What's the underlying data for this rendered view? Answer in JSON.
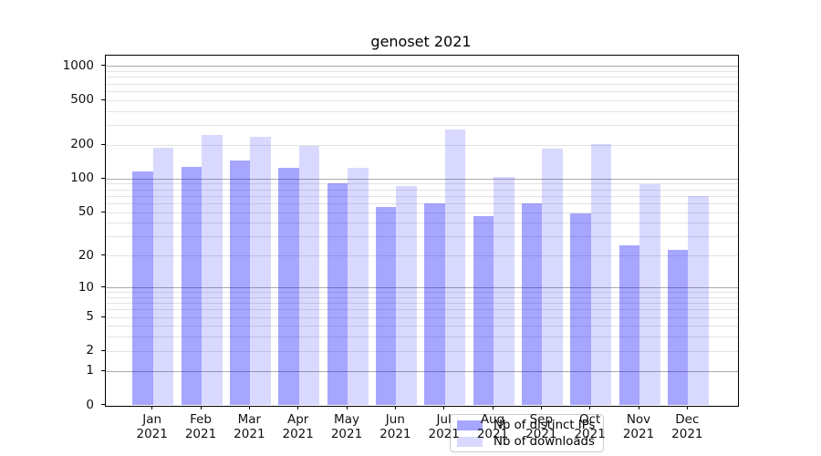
{
  "title": "genoset 2021",
  "legend": {
    "entries": [
      {
        "label": "Nb of distinct IPs",
        "color": "rgba(0,0,255,0.35)"
      },
      {
        "label": "Nb of downloads",
        "color": "rgba(0,0,255,0.15)"
      }
    ]
  },
  "chart_data": {
    "type": "bar",
    "title": "genoset 2021",
    "categories": [
      "Jan",
      "Feb",
      "Mar",
      "Apr",
      "May",
      "Jun",
      "Jul",
      "Aug",
      "Sep",
      "Oct",
      "Nov",
      "Dec"
    ],
    "category_year": "2021",
    "series": [
      {
        "name": "Nb of distinct IPs",
        "color": "rgba(0,0,255,0.35)",
        "values": [
          117,
          129,
          146,
          126,
          92,
          56,
          60,
          46,
          61,
          49,
          25,
          23
        ]
      },
      {
        "name": "Nb of downloads",
        "color": "rgba(0,0,255,0.15)",
        "values": [
          189,
          249,
          239,
          196,
          125,
          86,
          277,
          105,
          187,
          205,
          90,
          71
        ]
      }
    ],
    "xlabel": "",
    "ylabel": "",
    "yscale": "log1p",
    "ylim": [
      0,
      1250
    ],
    "yticks_labeled": [
      0,
      1,
      2,
      5,
      10,
      20,
      50,
      100,
      200,
      500,
      1000
    ],
    "yticks_decade": [
      1,
      10,
      100,
      1000
    ],
    "yticks_minor": [
      3,
      4,
      6,
      7,
      8,
      9,
      30,
      40,
      60,
      70,
      80,
      90,
      300,
      400,
      600,
      700,
      800,
      900
    ],
    "grid": "on",
    "legend_position": "lower center"
  }
}
